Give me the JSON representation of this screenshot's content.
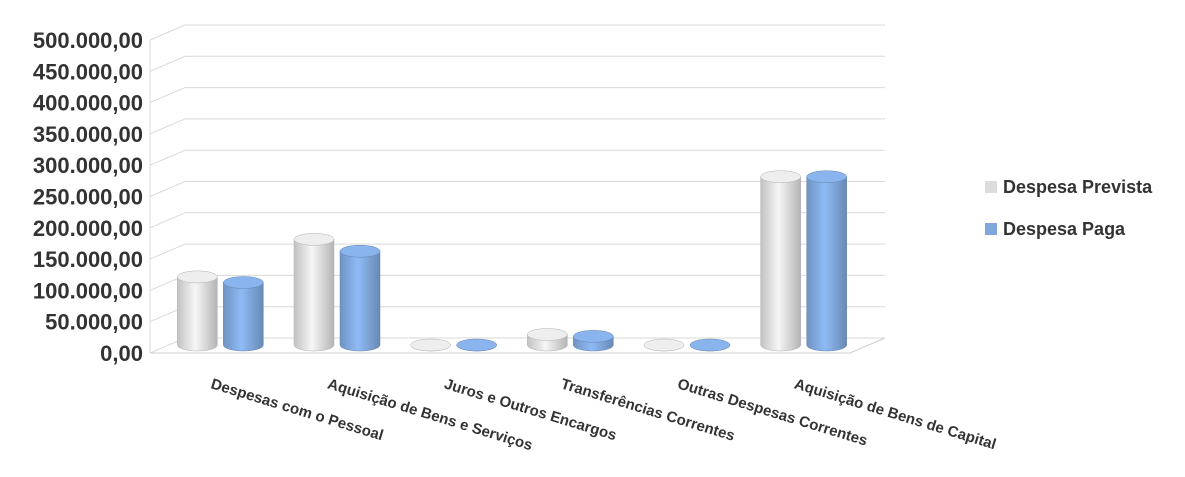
{
  "chart_data": {
    "type": "bar",
    "title": "",
    "xlabel": "",
    "ylabel": "",
    "ylim": [
      0,
      500000
    ],
    "yticks": [
      "0,00",
      "50.000,00",
      "100.000,00",
      "150.000,00",
      "200.000,00",
      "250.000,00",
      "300.000,00",
      "350.000,00",
      "400.000,00",
      "450.000,00",
      "500.000,00"
    ],
    "categories": [
      "Despesas com o Pessoal",
      "Aquisição de Bens e Serviços",
      "Juros e Outros Encargos",
      "Transferências Correntes",
      "Outras Despesas Correntes",
      "Aquisição de Bens de Capital"
    ],
    "series": [
      {
        "name": "Despesa Prevista",
        "color": "#dcdcdc",
        "values": [
          112000,
          172000,
          500,
          20000,
          500,
          272000
        ]
      },
      {
        "name": "Despesa Paga",
        "color": "#7fa7dc",
        "values": [
          103000,
          153000,
          500,
          17000,
          500,
          272000
        ]
      }
    ],
    "legend_position": "right",
    "grid": true,
    "style": "3d-cylinder"
  }
}
